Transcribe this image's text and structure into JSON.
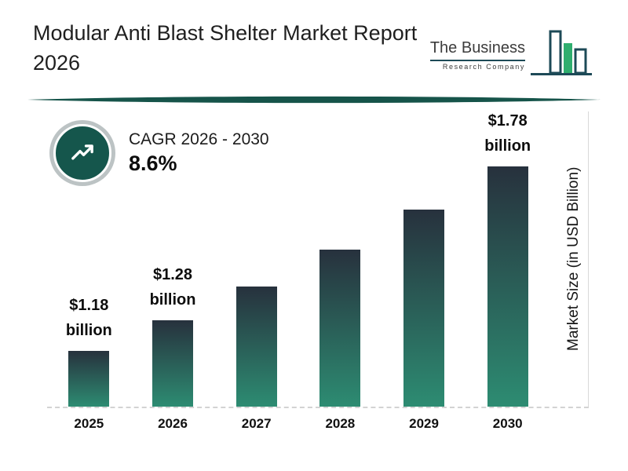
{
  "header": {
    "title": "Modular Anti Blast Shelter Market Report 2026",
    "logo": {
      "name": "The Business",
      "subname": "Research Company"
    }
  },
  "cagr": {
    "label": "CAGR 2026 - 2030",
    "value": "8.6%"
  },
  "chart_data": {
    "type": "bar",
    "title": "Modular Anti Blast Shelter Market Report 2026",
    "categories": [
      "2025",
      "2026",
      "2027",
      "2028",
      "2029",
      "2030"
    ],
    "values": [
      1.18,
      1.28,
      1.39,
      1.51,
      1.64,
      1.78
    ],
    "unit": "USD Billion",
    "ylabel": "Market Size (in USD Billion)",
    "xlabel": "",
    "legend": "none",
    "grid": "dashed baseline only",
    "annotations": [
      {
        "category": "2025",
        "label": "$1.18 billion"
      },
      {
        "category": "2026",
        "label": "$1.28 billion"
      },
      {
        "category": "2030",
        "label": "$1.78 billion"
      }
    ],
    "cagr_label": "CAGR 2026 - 2030",
    "cagr_value": "8.6%",
    "bar_gradient": [
      "#27313d",
      "#2d8c72"
    ]
  },
  "colors": {
    "accent_teal": "#15564c",
    "divider_teal": "#16544a",
    "logo_outline": "#1d4a57",
    "logo_green": "#2fae6e",
    "ring_gray": "#bcc3c4",
    "dash_gray": "#d3d3d3"
  }
}
